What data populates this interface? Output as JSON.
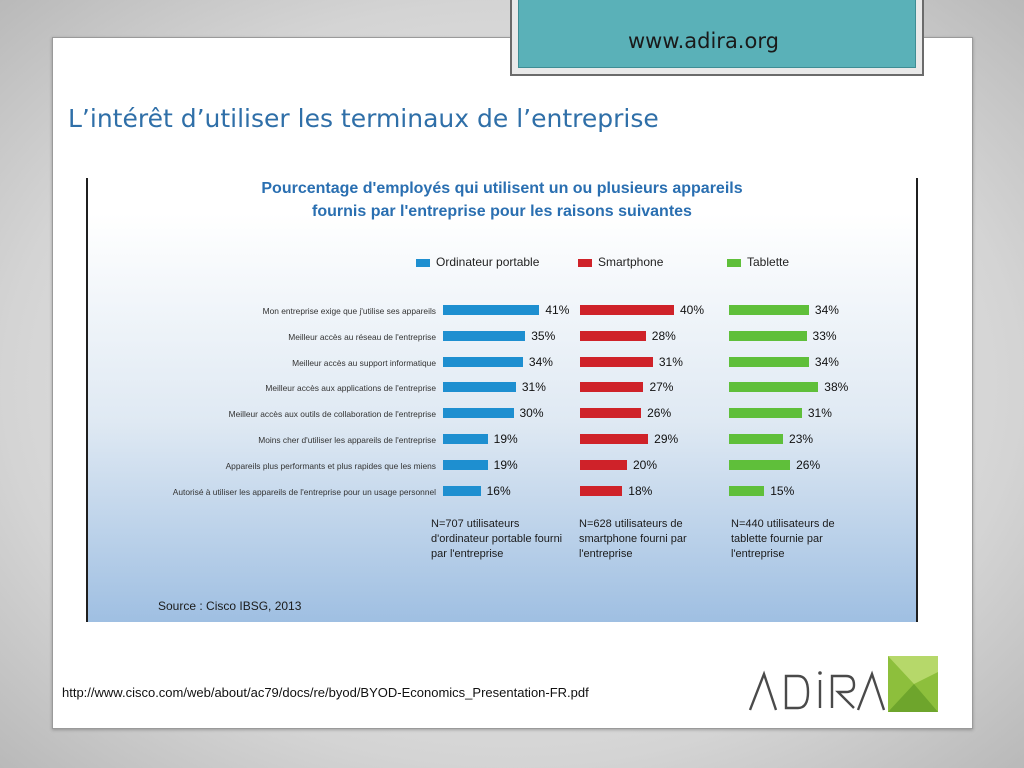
{
  "header": {
    "site_url": "www.adira.org"
  },
  "slide": {
    "title": "L’intérêt d’utiliser les terminaux de l’entreprise"
  },
  "chart_data": {
    "type": "bar",
    "title_line1": "Pourcentage d'employés qui utilisent un ou plusieurs appareils",
    "title_line2": "fournis par l'entreprise pour les raisons suivantes",
    "categories": [
      "Mon entreprise exige que j'utilise ses appareils",
      "Meilleur accès au réseau de l'entreprise",
      "Meilleur accès au support informatique",
      "Meilleur accès aux applications de l'entreprise",
      "Meilleur accès aux outils de collaboration de l'entreprise",
      "Moins cher d'utiliser les appareils de l'entreprise",
      "Appareils plus performants et plus rapides que les miens",
      "Autorisé à utiliser les appareils de l'entreprise pour un usage personnel"
    ],
    "series": [
      {
        "name": "Ordinateur portable",
        "color": "#1e8fd0",
        "values": [
          41,
          35,
          34,
          31,
          30,
          19,
          19,
          16
        ],
        "labels": [
          "41%",
          "35%",
          "34%",
          "31%",
          "30%",
          "19%",
          "19%",
          "16%"
        ]
      },
      {
        "name": "Smartphone",
        "color": "#cf2229",
        "values": [
          40,
          28,
          31,
          27,
          26,
          29,
          20,
          18
        ],
        "labels": [
          "40%",
          "28%",
          "31%",
          "27%",
          "26%",
          "29%",
          "20%",
          "18%"
        ]
      },
      {
        "name": "Tablette",
        "color": "#5fbf3a",
        "values": [
          34,
          33,
          34,
          38,
          31,
          23,
          26,
          15
        ],
        "labels": [
          "34%",
          "33%",
          "34%",
          "38%",
          "31%",
          "23%",
          "26%",
          "15%"
        ]
      }
    ],
    "notes": [
      "N=707 utilisateurs d'ordinateur portable fourni par l'entreprise",
      "N=628 utilisateurs de smartphone fourni par l'entreprise",
      "N=440 utilisateurs de tablette fournie par l'entreprise"
    ],
    "source": "Source : Cisco IBSG, 2013",
    "grid": false,
    "legend_position": "top"
  },
  "footer": {
    "link": "http://www.cisco.com/web/about/ac79/docs/re/byod/BYOD-Economics_Presentation-FR.pdf",
    "logo_text": "ADIRA"
  }
}
